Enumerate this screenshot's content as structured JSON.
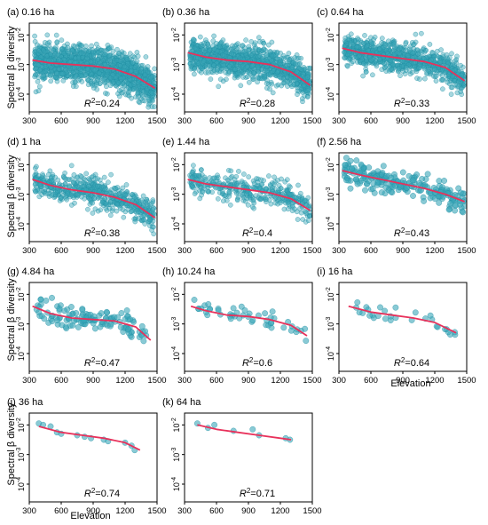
{
  "figure": {
    "y_axis_label": "Spectral β diversity",
    "x_axis_label": "Elevation",
    "point_color": "#3aa6b9",
    "point_edge_color": "#1f8fa3",
    "line_color": "#e8315b",
    "x_ticks": [
      "300",
      "600",
      "900",
      "1200",
      "1500"
    ],
    "y_tick_base": "10",
    "y_tick_exponents": [
      "-4",
      "-3",
      "-2"
    ]
  },
  "chart_data": [
    {
      "type": "scatter",
      "title": "(a) 0.16 ha",
      "r2_label": "R",
      "r2_sup": "2",
      "r2_value": "=0.24",
      "xlim": [
        300,
        1500
      ],
      "ylim_log10": [
        -4.6,
        -1.6
      ],
      "y_scale": "log",
      "point_count": 1500,
      "x_range": [
        350,
        1480
      ],
      "spread_log10": 0.55,
      "fit": {
        "x": [
          330,
          500,
          700,
          900,
          1100,
          1300,
          1480
        ],
        "y_log10": [
          -2.85,
          -2.95,
          -3.0,
          -3.05,
          -3.15,
          -3.4,
          -3.8
        ]
      }
    },
    {
      "type": "scatter",
      "title": "(b) 0.36 ha",
      "r2_label": "R",
      "r2_sup": "2",
      "r2_value": "=0.28",
      "xlim": [
        300,
        1500
      ],
      "ylim_log10": [
        -4.6,
        -1.6
      ],
      "y_scale": "log",
      "point_count": 1200,
      "x_range": [
        350,
        1480
      ],
      "spread_log10": 0.5,
      "fit": {
        "x": [
          330,
          500,
          700,
          900,
          1100,
          1300,
          1480
        ],
        "y_log10": [
          -2.6,
          -2.75,
          -2.85,
          -2.9,
          -3.0,
          -3.25,
          -3.7
        ]
      }
    },
    {
      "type": "scatter",
      "title": "(c) 0.64 ha",
      "r2_label": "R",
      "r2_sup": "2",
      "r2_value": "=0.33",
      "xlim": [
        300,
        1500
      ],
      "ylim_log10": [
        -4.6,
        -1.6
      ],
      "y_scale": "log",
      "point_count": 900,
      "x_range": [
        350,
        1480
      ],
      "spread_log10": 0.45,
      "fit": {
        "x": [
          330,
          500,
          700,
          900,
          1100,
          1300,
          1480
        ],
        "y_log10": [
          -2.45,
          -2.6,
          -2.7,
          -2.8,
          -2.9,
          -3.1,
          -3.55
        ]
      }
    },
    {
      "type": "scatter",
      "title": "(d) 1 ha",
      "r2_label": "R",
      "r2_sup": "2",
      "r2_value": "=0.38",
      "xlim": [
        300,
        1500
      ],
      "ylim_log10": [
        -4.6,
        -1.6
      ],
      "y_scale": "log",
      "point_count": 600,
      "x_range": [
        350,
        1480
      ],
      "spread_log10": 0.45,
      "fit": {
        "x": [
          330,
          500,
          700,
          900,
          1100,
          1300,
          1480
        ],
        "y_log10": [
          -2.5,
          -2.7,
          -2.85,
          -2.95,
          -3.1,
          -3.35,
          -3.8
        ]
      }
    },
    {
      "type": "scatter",
      "title": "(e) 1.44 ha",
      "r2_label": "R",
      "r2_sup": "2",
      "r2_value": "=0.4",
      "xlim": [
        300,
        1500
      ],
      "ylim_log10": [
        -4.6,
        -1.6
      ],
      "y_scale": "log",
      "point_count": 380,
      "x_range": [
        350,
        1480
      ],
      "spread_log10": 0.4,
      "fit": {
        "x": [
          330,
          500,
          700,
          900,
          1100,
          1300,
          1480
        ],
        "y_log10": [
          -2.5,
          -2.65,
          -2.75,
          -2.85,
          -2.95,
          -3.15,
          -3.55
        ]
      }
    },
    {
      "type": "scatter",
      "title": "(f) 2.56 ha",
      "r2_label": "R",
      "r2_sup": "2",
      "r2_value": "=0.43",
      "xlim": [
        300,
        1500
      ],
      "ylim_log10": [
        -4.6,
        -1.6
      ],
      "y_scale": "log",
      "point_count": 230,
      "x_range": [
        350,
        1480
      ],
      "spread_log10": 0.38,
      "fit": {
        "x": [
          330,
          500,
          700,
          900,
          1100,
          1300,
          1480
        ],
        "y_log10": [
          -2.2,
          -2.35,
          -2.5,
          -2.65,
          -2.8,
          -3.0,
          -3.25
        ]
      }
    },
    {
      "type": "scatter",
      "title": "(g) 4.84 ha",
      "r2_label": "R",
      "r2_sup": "2",
      "r2_value": "=0.47",
      "xlim": [
        300,
        1500
      ],
      "ylim_log10": [
        -4.6,
        -1.6
      ],
      "y_scale": "log",
      "point_count": 130,
      "x_range": [
        350,
        1430
      ],
      "spread_log10": 0.35,
      "fit": {
        "x": [
          330,
          500,
          700,
          900,
          1100,
          1300,
          1440
        ],
        "y_log10": [
          -2.4,
          -2.65,
          -2.8,
          -2.85,
          -2.9,
          -3.1,
          -3.55
        ]
      }
    },
    {
      "type": "scatter",
      "title": "(h) 10.24 ha",
      "r2_label": "R",
      "r2_sup": "2",
      "r2_value": "=0.6",
      "xlim": [
        300,
        1500
      ],
      "ylim_log10": [
        -4.6,
        -1.6
      ],
      "y_scale": "log",
      "point_count": 48,
      "x_range": [
        380,
        1440
      ],
      "spread_log10": 0.3,
      "fit": {
        "x": [
          360,
          500,
          700,
          900,
          1100,
          1300,
          1450
        ],
        "y_log10": [
          -2.4,
          -2.55,
          -2.7,
          -2.75,
          -2.85,
          -3.05,
          -3.4
        ]
      }
    },
    {
      "type": "scatter",
      "title": "(i) 16 ha",
      "r2_label": "R",
      "r2_sup": "2",
      "r2_value": "=0.64",
      "xlim": [
        300,
        1500
      ],
      "ylim_log10": [
        -4.6,
        -1.6
      ],
      "y_scale": "log",
      "point_count": 30,
      "x_range": [
        390,
        1400
      ],
      "spread_log10": 0.22,
      "fit": {
        "x": [
          390,
          600,
          800,
          1000,
          1200,
          1400
        ],
        "y_log10": [
          -2.4,
          -2.6,
          -2.7,
          -2.8,
          -2.95,
          -3.3
        ]
      }
    },
    {
      "type": "scatter",
      "title": "(j) 36 ha",
      "r2_label": "R",
      "r2_sup": "2",
      "r2_value": "=0.74",
      "xlim": [
        300,
        1500
      ],
      "ylim_log10": [
        -4.6,
        -1.6
      ],
      "y_scale": "log",
      "point_count": 0,
      "points": [
        [
          390,
          -1.95
        ],
        [
          430,
          -2.0
        ],
        [
          500,
          -2.05
        ],
        [
          560,
          -2.25
        ],
        [
          600,
          -2.3
        ],
        [
          750,
          -2.35
        ],
        [
          820,
          -2.4
        ],
        [
          880,
          -2.45
        ],
        [
          1000,
          -2.5
        ],
        [
          1040,
          -2.55
        ],
        [
          1200,
          -2.6
        ],
        [
          1260,
          -2.7
        ],
        [
          1290,
          -2.85
        ]
      ],
      "fit": {
        "x": [
          390,
          600,
          800,
          1000,
          1200,
          1340
        ],
        "y_log10": [
          -2.05,
          -2.25,
          -2.35,
          -2.45,
          -2.6,
          -2.85
        ]
      }
    },
    {
      "type": "scatter",
      "title": "(k) 64 ha",
      "r2_label": "R",
      "r2_sup": "2",
      "r2_value": "=0.71",
      "xlim": [
        300,
        1500
      ],
      "ylim_log10": [
        -4.6,
        -1.6
      ],
      "y_scale": "log",
      "point_count": 0,
      "points": [
        [
          420,
          -1.95
        ],
        [
          520,
          -2.1
        ],
        [
          580,
          -2.0
        ],
        [
          760,
          -2.2
        ],
        [
          940,
          -2.15
        ],
        [
          1000,
          -2.35
        ],
        [
          1250,
          -2.45
        ],
        [
          1290,
          -2.5
        ]
      ],
      "fit": {
        "x": [
          420,
          600,
          800,
          1000,
          1200,
          1300
        ],
        "y_log10": [
          -2.0,
          -2.15,
          -2.25,
          -2.35,
          -2.45,
          -2.5
        ]
      }
    }
  ]
}
